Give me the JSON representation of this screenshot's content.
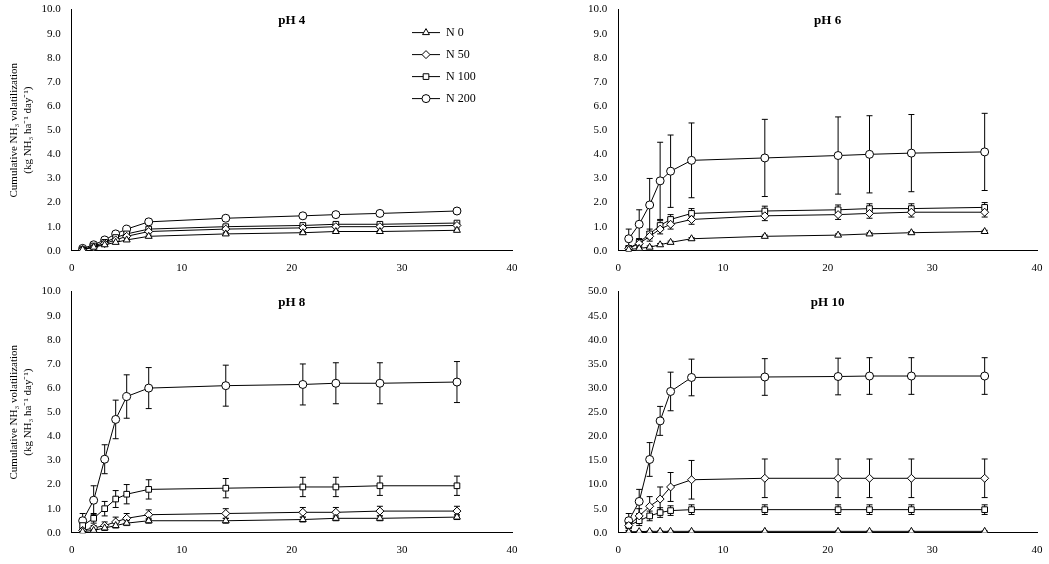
{
  "chart_data": [
    {
      "type": "line",
      "title": "pH 4",
      "ylabel": [
        "Cumulative NH₃ volatilization",
        "(kg NH₃ ha⁻¹ day⁻¹)"
      ],
      "x": [
        1,
        2,
        3,
        4,
        5,
        7,
        14,
        21,
        24,
        28,
        35
      ],
      "xlim": [
        0,
        40
      ],
      "xticks": [
        0,
        10,
        20,
        30,
        40
      ],
      "ylim": [
        0,
        10
      ],
      "yticks": [
        {
          "value": 0,
          "label": "0.0"
        },
        {
          "value": 1,
          "label": "1.0"
        },
        {
          "value": 2,
          "label": "2.0"
        },
        {
          "value": 3,
          "label": "3.0"
        },
        {
          "value": 4,
          "label": "4.0"
        },
        {
          "value": 5,
          "label": "5.0"
        },
        {
          "value": 6,
          "label": "6.0"
        },
        {
          "value": 7,
          "label": "7.0"
        },
        {
          "value": 8,
          "label": "8.0"
        },
        {
          "value": 9,
          "label": "9.0"
        },
        {
          "value": 10,
          "label": "10.0"
        }
      ],
      "grid": false,
      "legend": "upper right",
      "series": [
        {
          "name": "N 0",
          "color": "#000000",
          "marker": "triangle",
          "values": [
            0.05,
            0.15,
            0.25,
            0.35,
            0.45,
            0.6,
            0.7,
            0.75,
            0.8,
            0.8,
            0.85
          ],
          "errors": [
            0.03,
            0.05,
            0.05,
            0.05,
            0.05,
            0.05,
            0.05,
            0.05,
            0.05,
            0.05,
            0.05
          ]
        },
        {
          "name": "N 50",
          "color": "#000000",
          "marker": "diamond",
          "values": [
            0.05,
            0.15,
            0.3,
            0.45,
            0.6,
            0.8,
            0.9,
            0.95,
            1.0,
            1.0,
            1.05
          ],
          "errors": [
            0.03,
            0.05,
            0.05,
            0.05,
            0.05,
            0.05,
            0.05,
            0.05,
            0.05,
            0.05,
            0.05
          ]
        },
        {
          "name": "N 100",
          "color": "#000000",
          "marker": "square",
          "values": [
            0.05,
            0.2,
            0.35,
            0.55,
            0.7,
            0.9,
            1.0,
            1.05,
            1.1,
            1.1,
            1.15
          ],
          "errors": [
            0.03,
            0.05,
            0.05,
            0.05,
            0.05,
            0.05,
            0.05,
            0.05,
            0.05,
            0.05,
            0.05
          ]
        },
        {
          "name": "N 200",
          "color": "#000000",
          "marker": "circle",
          "values": [
            0.1,
            0.25,
            0.45,
            0.7,
            0.9,
            1.2,
            1.35,
            1.45,
            1.5,
            1.55,
            1.65
          ],
          "errors": [
            0.03,
            0.05,
            0.08,
            0.1,
            0.1,
            0.1,
            0.1,
            0.1,
            0.1,
            0.1,
            0.1
          ]
        }
      ]
    },
    {
      "type": "line",
      "title": "pH 6",
      "x": [
        1,
        2,
        3,
        4,
        5,
        7,
        14,
        21,
        24,
        28,
        35
      ],
      "xlim": [
        0,
        40
      ],
      "xticks": [
        0,
        10,
        20,
        30,
        40
      ],
      "ylim": [
        0,
        10
      ],
      "yticks": [
        {
          "value": 0,
          "label": "0.0"
        },
        {
          "value": 1,
          "label": "1.0"
        },
        {
          "value": 2,
          "label": "2.0"
        },
        {
          "value": 3,
          "label": "3.0"
        },
        {
          "value": 4,
          "label": "4.0"
        },
        {
          "value": 5,
          "label": "5.0"
        },
        {
          "value": 6,
          "label": "6.0"
        },
        {
          "value": 7,
          "label": "7.0"
        },
        {
          "value": 8,
          "label": "8.0"
        },
        {
          "value": 9,
          "label": "9.0"
        },
        {
          "value": 10,
          "label": "10.0"
        }
      ],
      "grid": false,
      "series": [
        {
          "name": "N 0",
          "color": "#000000",
          "marker": "triangle",
          "values": [
            0.05,
            0.1,
            0.15,
            0.25,
            0.35,
            0.5,
            0.6,
            0.65,
            0.7,
            0.75,
            0.8
          ],
          "errors": [
            0.05,
            0.05,
            0.05,
            0.05,
            0.05,
            0.05,
            0.05,
            0.05,
            0.05,
            0.05,
            0.05
          ]
        },
        {
          "name": "N 50",
          "color": "#000000",
          "marker": "diamond",
          "values": [
            0.1,
            0.3,
            0.6,
            0.9,
            1.1,
            1.3,
            1.45,
            1.5,
            1.55,
            1.6,
            1.6
          ],
          "errors": [
            0.1,
            0.15,
            0.2,
            0.2,
            0.2,
            0.2,
            0.2,
            0.2,
            0.2,
            0.2,
            0.2
          ]
        },
        {
          "name": "N 100",
          "color": "#000000",
          "marker": "square",
          "values": [
            0.1,
            0.35,
            0.7,
            1.05,
            1.3,
            1.55,
            1.65,
            1.7,
            1.75,
            1.75,
            1.8
          ],
          "errors": [
            0.1,
            0.15,
            0.2,
            0.2,
            0.2,
            0.2,
            0.2,
            0.2,
            0.2,
            0.2,
            0.2
          ]
        },
        {
          "name": "N 200",
          "color": "#000000",
          "marker": "circle",
          "values": [
            0.5,
            1.1,
            1.9,
            2.9,
            3.3,
            3.75,
            3.85,
            3.95,
            4.0,
            4.05,
            4.1
          ],
          "errors": [
            0.4,
            0.6,
            1.1,
            1.6,
            1.5,
            1.55,
            1.6,
            1.6,
            1.6,
            1.6,
            1.6
          ]
        }
      ]
    },
    {
      "type": "line",
      "title": "pH 8",
      "ylabel": [
        "Cumulative NH₃ volatilization",
        "(kg NH₃ ha⁻¹ day⁻¹)"
      ],
      "x": [
        1,
        2,
        3,
        4,
        5,
        7,
        14,
        21,
        24,
        28,
        35
      ],
      "xlim": [
        0,
        40
      ],
      "xticks": [
        0,
        10,
        20,
        30,
        40
      ],
      "ylim": [
        0,
        10
      ],
      "yticks": [
        {
          "value": 0,
          "label": "0.0"
        },
        {
          "value": 1,
          "label": "1.0"
        },
        {
          "value": 2,
          "label": "2.0"
        },
        {
          "value": 3,
          "label": "3.0"
        },
        {
          "value": 4,
          "label": "4.0"
        },
        {
          "value": 5,
          "label": "5.0"
        },
        {
          "value": 6,
          "label": "6.0"
        },
        {
          "value": 7,
          "label": "7.0"
        },
        {
          "value": 8,
          "label": "8.0"
        },
        {
          "value": 9,
          "label": "9.0"
        },
        {
          "value": 10,
          "label": "10.0"
        }
      ],
      "grid": false,
      "series": [
        {
          "name": "N 0",
          "color": "#000000",
          "marker": "triangle",
          "values": [
            0.05,
            0.1,
            0.2,
            0.3,
            0.4,
            0.5,
            0.5,
            0.55,
            0.6,
            0.6,
            0.65
          ],
          "errors": [
            0.05,
            0.05,
            0.1,
            0.1,
            0.1,
            0.1,
            0.1,
            0.1,
            0.1,
            0.1,
            0.1
          ]
        },
        {
          "name": "N 50",
          "color": "#000000",
          "marker": "diamond",
          "values": [
            0.1,
            0.2,
            0.3,
            0.45,
            0.6,
            0.75,
            0.8,
            0.85,
            0.85,
            0.9,
            0.9
          ],
          "errors": [
            0.05,
            0.1,
            0.15,
            0.2,
            0.2,
            0.2,
            0.2,
            0.2,
            0.2,
            0.2,
            0.2
          ]
        },
        {
          "name": "N 100",
          "color": "#000000",
          "marker": "square",
          "values": [
            0.3,
            0.6,
            1.0,
            1.4,
            1.6,
            1.8,
            1.85,
            1.9,
            1.9,
            1.95,
            1.95
          ],
          "errors": [
            0.1,
            0.2,
            0.3,
            0.35,
            0.4,
            0.4,
            0.4,
            0.4,
            0.4,
            0.4,
            0.4
          ]
        },
        {
          "name": "N 200",
          "color": "#000000",
          "marker": "circle",
          "values": [
            0.5,
            1.35,
            3.05,
            4.7,
            5.65,
            6.0,
            6.1,
            6.15,
            6.2,
            6.2,
            6.25
          ],
          "errors": [
            0.3,
            0.6,
            0.6,
            0.8,
            0.9,
            0.85,
            0.85,
            0.85,
            0.85,
            0.85,
            0.85
          ]
        }
      ]
    },
    {
      "type": "line",
      "title": "pH 10",
      "x": [
        1,
        2,
        3,
        4,
        5,
        7,
        14,
        21,
        24,
        28,
        35
      ],
      "xlim": [
        0,
        40
      ],
      "xticks": [
        0,
        10,
        20,
        30,
        40
      ],
      "ylim": [
        0,
        50
      ],
      "yticks": [
        {
          "value": 0,
          "label": "0.0"
        },
        {
          "value": 5,
          "label": "5.0"
        },
        {
          "value": 10,
          "label": "10.0"
        },
        {
          "value": 15,
          "label": "15.0"
        },
        {
          "value": 20,
          "label": "20.0"
        },
        {
          "value": 25,
          "label": "25.0"
        },
        {
          "value": 30,
          "label": "30.0"
        },
        {
          "value": 35,
          "label": "35.0"
        },
        {
          "value": 40,
          "label": "40.0"
        },
        {
          "value": 45,
          "label": "45.0"
        },
        {
          "value": 50,
          "label": "50.0"
        }
      ],
      "grid": false,
      "series": [
        {
          "name": "N 0",
          "color": "#000000",
          "marker": "triangle",
          "values": [
            0.2,
            0.25,
            0.3,
            0.3,
            0.3,
            0.3,
            0.3,
            0.3,
            0.3,
            0.3,
            0.3
          ],
          "errors": [
            0.1,
            0.1,
            0.1,
            0.1,
            0.1,
            0.1,
            0.1,
            0.1,
            0.1,
            0.1,
            0.1
          ]
        },
        {
          "name": "N 50",
          "color": "#000000",
          "marker": "diamond",
          "values": [
            1.5,
            3.5,
            5.5,
            7.0,
            9.5,
            11.0,
            11.3,
            11.3,
            11.3,
            11.3,
            11.3
          ],
          "errors": [
            1.0,
            1.5,
            2.0,
            2.5,
            3.0,
            4.0,
            4.0,
            4.0,
            4.0,
            4.0,
            4.0
          ]
        },
        {
          "name": "N 100",
          "color": "#000000",
          "marker": "square",
          "values": [
            1.5,
            2.5,
            3.5,
            4.2,
            4.6,
            4.8,
            4.8,
            4.8,
            4.8,
            4.8,
            4.8
          ],
          "errors": [
            1.0,
            1.0,
            1.0,
            1.0,
            1.0,
            1.0,
            1.0,
            1.0,
            1.0,
            1.0,
            1.0
          ]
        },
        {
          "name": "N 200",
          "color": "#000000",
          "marker": "circle",
          "values": [
            2.5,
            6.5,
            15.2,
            23.2,
            29.3,
            32.2,
            32.3,
            32.4,
            32.5,
            32.5,
            32.5
          ],
          "errors": [
            1.5,
            2.5,
            3.5,
            3.0,
            4.0,
            3.8,
            3.8,
            3.8,
            3.8,
            3.8,
            3.8
          ]
        }
      ]
    }
  ]
}
